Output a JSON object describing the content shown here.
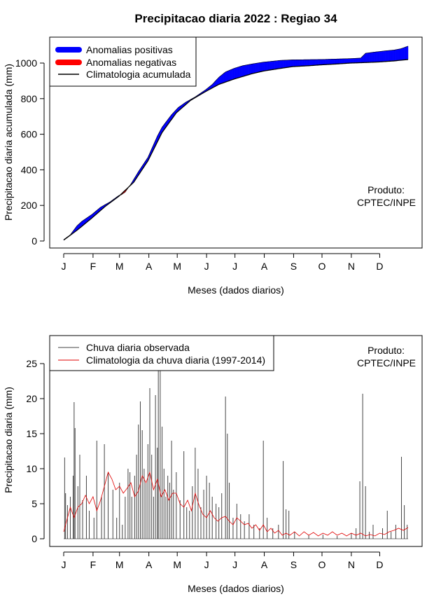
{
  "page_title": "Precipitacao diaria 2022 : Regiao 34",
  "months": [
    "J",
    "F",
    "M",
    "A",
    "M",
    "J",
    "J",
    "A",
    "S",
    "O",
    "N",
    "D"
  ],
  "producer": {
    "line1": "Produto:",
    "line2": "CPTEC/INPE"
  },
  "colors": {
    "positive": "#0000ff",
    "negative": "#ff0000",
    "climatology": "#000000",
    "observed": "#444444",
    "clim_daily": "#e00000"
  },
  "chart_data": [
    {
      "type": "area",
      "title": "Precipitacao diaria 2022 : Regiao 34",
      "xlabel": "Meses (dados diarios)",
      "ylabel": "Precipitacao diaria acumulada (mm)",
      "ylim": [
        0,
        1100
      ],
      "yticks": [
        0,
        200,
        400,
        600,
        800,
        1000
      ],
      "xlim_days": [
        1,
        365
      ],
      "legend": [
        "Anomalias positivas",
        "Anomalias negativas",
        "Climatologia acumulada"
      ],
      "climatology_points": [
        [
          1,
          5
        ],
        [
          15,
          60
        ],
        [
          31,
          130
        ],
        [
          45,
          195
        ],
        [
          59,
          250
        ],
        [
          75,
          330
        ],
        [
          90,
          450
        ],
        [
          105,
          610
        ],
        [
          120,
          720
        ],
        [
          135,
          790
        ],
        [
          151,
          840
        ],
        [
          165,
          880
        ],
        [
          181,
          910
        ],
        [
          200,
          940
        ],
        [
          212,
          955
        ],
        [
          230,
          970
        ],
        [
          243,
          980
        ],
        [
          260,
          985
        ],
        [
          273,
          990
        ],
        [
          290,
          995
        ],
        [
          304,
          1000
        ],
        [
          320,
          1003
        ],
        [
          334,
          1006
        ],
        [
          350,
          1012
        ],
        [
          365,
          1020
        ]
      ],
      "observed_points": [
        [
          1,
          8
        ],
        [
          8,
          35
        ],
        [
          15,
          85
        ],
        [
          20,
          110
        ],
        [
          31,
          150
        ],
        [
          40,
          190
        ],
        [
          50,
          220
        ],
        [
          59,
          255
        ],
        [
          62,
          260
        ],
        [
          66,
          275
        ],
        [
          72,
          320
        ],
        [
          80,
          390
        ],
        [
          90,
          470
        ],
        [
          95,
          530
        ],
        [
          100,
          590
        ],
        [
          105,
          640
        ],
        [
          115,
          710
        ],
        [
          122,
          750
        ],
        [
          130,
          780
        ],
        [
          140,
          810
        ],
        [
          151,
          850
        ],
        [
          158,
          880
        ],
        [
          165,
          920
        ],
        [
          172,
          950
        ],
        [
          181,
          970
        ],
        [
          190,
          985
        ],
        [
          200,
          995
        ],
        [
          212,
          1005
        ],
        [
          230,
          1015
        ],
        [
          243,
          1018
        ],
        [
          273,
          1020
        ],
        [
          304,
          1025
        ],
        [
          315,
          1028
        ],
        [
          320,
          1055
        ],
        [
          330,
          1062
        ],
        [
          340,
          1068
        ],
        [
          350,
          1073
        ],
        [
          357,
          1080
        ],
        [
          365,
          1095
        ]
      ]
    },
    {
      "type": "bar",
      "title": "",
      "xlabel": "Meses (dados diarios)",
      "ylabel": "Precipitacao diaria (mm)",
      "ylim": [
        0,
        28
      ],
      "yticks": [
        0,
        5,
        10,
        15,
        20,
        25
      ],
      "legend": [
        "Chuva diaria observada",
        "Climatologia da chuva diaria (1997-2014)"
      ],
      "observed_daily": [
        [
          2,
          11.6
        ],
        [
          3,
          6.5
        ],
        [
          5,
          4.8
        ],
        [
          8,
          6
        ],
        [
          11,
          9
        ],
        [
          12,
          19.5
        ],
        [
          13,
          15.8
        ],
        [
          16,
          7.5
        ],
        [
          18,
          12
        ],
        [
          21,
          5.5
        ],
        [
          25,
          9
        ],
        [
          28,
          4
        ],
        [
          33,
          3
        ],
        [
          36,
          14
        ],
        [
          41,
          6
        ],
        [
          44,
          13.5
        ],
        [
          48,
          9.5
        ],
        [
          53,
          7
        ],
        [
          57,
          3
        ],
        [
          60,
          8
        ],
        [
          63,
          2
        ],
        [
          66,
          6
        ],
        [
          69,
          10
        ],
        [
          71,
          9.5
        ],
        [
          73,
          6
        ],
        [
          76,
          9
        ],
        [
          78,
          12
        ],
        [
          80,
          16.3
        ],
        [
          82,
          19.6
        ],
        [
          84,
          15.5
        ],
        [
          86,
          10
        ],
        [
          88,
          8
        ],
        [
          90,
          13.5
        ],
        [
          92,
          21.5
        ],
        [
          94,
          12
        ],
        [
          96,
          6
        ],
        [
          98,
          20.5
        ],
        [
          100,
          13
        ],
        [
          101,
          24.5
        ],
        [
          103,
          28
        ],
        [
          105,
          16
        ],
        [
          107,
          10
        ],
        [
          109,
          6
        ],
        [
          111,
          9
        ],
        [
          113,
          8
        ],
        [
          115,
          14
        ],
        [
          117,
          7
        ],
        [
          120,
          9.5
        ],
        [
          124,
          5.5
        ],
        [
          128,
          12.5
        ],
        [
          131,
          4.5
        ],
        [
          134,
          4
        ],
        [
          137,
          7.5
        ],
        [
          140,
          13
        ],
        [
          143,
          10
        ],
        [
          146,
          4.5
        ],
        [
          149,
          7
        ],
        [
          152,
          9
        ],
        [
          155,
          8
        ],
        [
          158,
          6
        ],
        [
          162,
          5
        ],
        [
          165,
          4.5
        ],
        [
          168,
          6.5
        ],
        [
          172,
          20.3
        ],
        [
          174,
          15
        ],
        [
          176,
          8
        ],
        [
          180,
          3
        ],
        [
          184,
          5
        ],
        [
          188,
          3.5
        ],
        [
          192,
          2.5
        ],
        [
          197,
          3.5
        ],
        [
          202,
          2
        ],
        [
          208,
          1.5
        ],
        [
          212,
          14
        ],
        [
          216,
          3
        ],
        [
          222,
          1.5
        ],
        [
          228,
          2
        ],
        [
          233,
          11.1
        ],
        [
          236,
          4.2
        ],
        [
          239,
          4
        ],
        [
          245,
          1
        ],
        [
          260,
          0.5
        ],
        [
          275,
          0.6
        ],
        [
          290,
          0.4
        ],
        [
          305,
          0.8
        ],
        [
          310,
          1.5
        ],
        [
          314,
          8.2
        ],
        [
          317,
          20.7
        ],
        [
          320,
          7.5
        ],
        [
          324,
          1
        ],
        [
          328,
          2
        ],
        [
          338,
          1.5
        ],
        [
          343,
          4
        ],
        [
          347,
          1
        ],
        [
          352,
          2
        ],
        [
          358,
          11.7
        ],
        [
          361,
          4.8
        ],
        [
          364,
          2
        ]
      ],
      "climatology_daily_points": [
        [
          1,
          1
        ],
        [
          4,
          2.5
        ],
        [
          8,
          4.5
        ],
        [
          12,
          3
        ],
        [
          16,
          4.5
        ],
        [
          20,
          5
        ],
        [
          24,
          6.2
        ],
        [
          28,
          5
        ],
        [
          32,
          6
        ],
        [
          36,
          4
        ],
        [
          40,
          5.5
        ],
        [
          44,
          7.5
        ],
        [
          48,
          9.5
        ],
        [
          52,
          8.5
        ],
        [
          56,
          7
        ],
        [
          60,
          7.5
        ],
        [
          64,
          6.5
        ],
        [
          68,
          7.2
        ],
        [
          72,
          8
        ],
        [
          76,
          6
        ],
        [
          80,
          6.8
        ],
        [
          84,
          9
        ],
        [
          88,
          8
        ],
        [
          92,
          9.5
        ],
        [
          96,
          7
        ],
        [
          100,
          8.5
        ],
        [
          104,
          6
        ],
        [
          108,
          7
        ],
        [
          112,
          5.5
        ],
        [
          116,
          6.5
        ],
        [
          120,
          6.5
        ],
        [
          124,
          5
        ],
        [
          128,
          4.5
        ],
        [
          132,
          5.5
        ],
        [
          136,
          4
        ],
        [
          140,
          6.5
        ],
        [
          144,
          4.8
        ],
        [
          148,
          3.5
        ],
        [
          152,
          3
        ],
        [
          156,
          4
        ],
        [
          160,
          3
        ],
        [
          164,
          2.5
        ],
        [
          168,
          3
        ],
        [
          172,
          3.2
        ],
        [
          176,
          2.5
        ],
        [
          180,
          2
        ],
        [
          184,
          3
        ],
        [
          188,
          2.5
        ],
        [
          192,
          2
        ],
        [
          196,
          2.2
        ],
        [
          200,
          1.5
        ],
        [
          204,
          2
        ],
        [
          208,
          1.2
        ],
        [
          212,
          2
        ],
        [
          216,
          1
        ],
        [
          220,
          1.5
        ],
        [
          224,
          0.8
        ],
        [
          228,
          1.2
        ],
        [
          232,
          0.5
        ],
        [
          236,
          0.8
        ],
        [
          240,
          0.5
        ],
        [
          245,
          1
        ],
        [
          250,
          0.4
        ],
        [
          255,
          1
        ],
        [
          260,
          0.5
        ],
        [
          265,
          0.9
        ],
        [
          270,
          0.4
        ],
        [
          275,
          0.8
        ],
        [
          280,
          0.5
        ],
        [
          285,
          1
        ],
        [
          290,
          0.5
        ],
        [
          295,
          0.8
        ],
        [
          300,
          0.4
        ],
        [
          305,
          0.8
        ],
        [
          310,
          0.5
        ],
        [
          315,
          0.8
        ],
        [
          320,
          0.4
        ],
        [
          325,
          0.6
        ],
        [
          330,
          0.4
        ],
        [
          335,
          0.8
        ],
        [
          340,
          0.6
        ],
        [
          345,
          1
        ],
        [
          350,
          1.2
        ],
        [
          355,
          1.5
        ],
        [
          360,
          1.2
        ],
        [
          365,
          1.6
        ]
      ]
    }
  ]
}
